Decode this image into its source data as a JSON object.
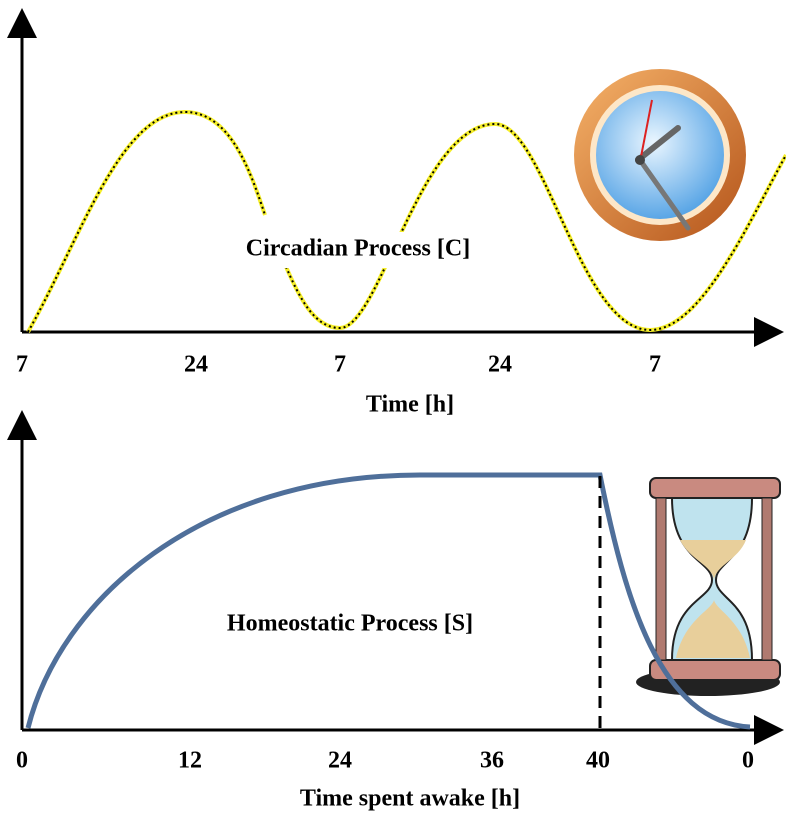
{
  "circadian": {
    "label": "Circadian Process [C]",
    "ticks": [
      "7",
      "24",
      "7",
      "24",
      "7"
    ],
    "axis_title": "Time [h]"
  },
  "homeostatic": {
    "label": "Homeostatic Process [S]",
    "ticks": [
      "0",
      "12",
      "24",
      "36",
      "40",
      "0"
    ],
    "axis_title": "Time spent awake [h]"
  }
}
